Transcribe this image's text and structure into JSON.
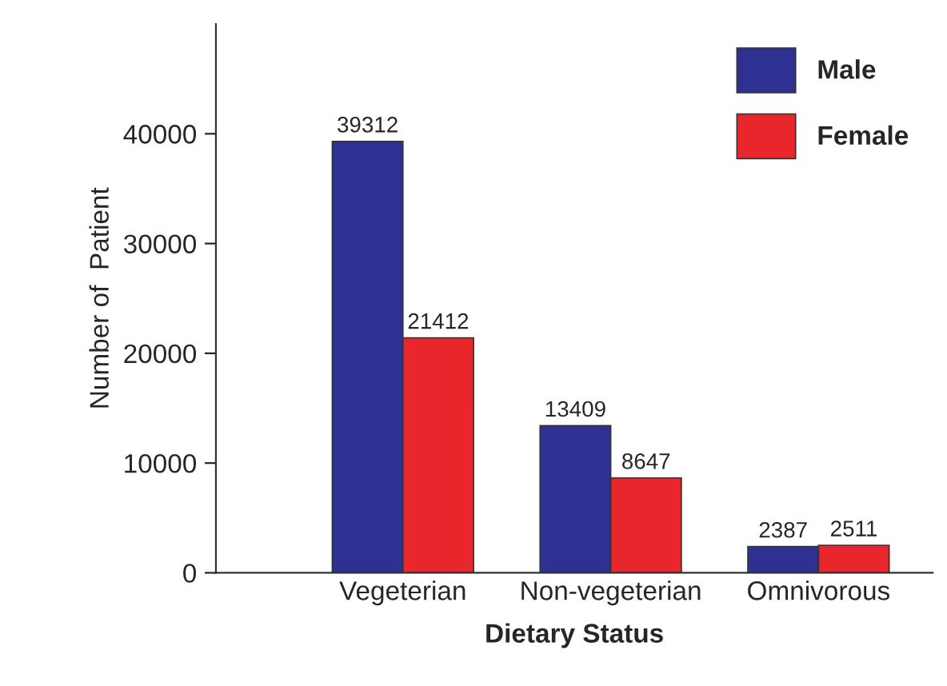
{
  "chart_data": {
    "type": "bar",
    "xlabel": "Dietary Status",
    "ylabel": "Number of  Patient",
    "categories": [
      "Vegeterian",
      "Non-vegeterian",
      "Omnivorous"
    ],
    "series": [
      {
        "name": "Male",
        "color": "#2e3192",
        "values": [
          39312,
          13409,
          2387
        ]
      },
      {
        "name": "Female",
        "color": "#e8262c",
        "values": [
          21412,
          8647,
          2511
        ]
      }
    ],
    "ylim": [
      0,
      50000
    ],
    "yticks": [
      0,
      10000,
      20000,
      30000,
      40000
    ],
    "data_labels": true,
    "grid": false,
    "legend": "top right"
  }
}
